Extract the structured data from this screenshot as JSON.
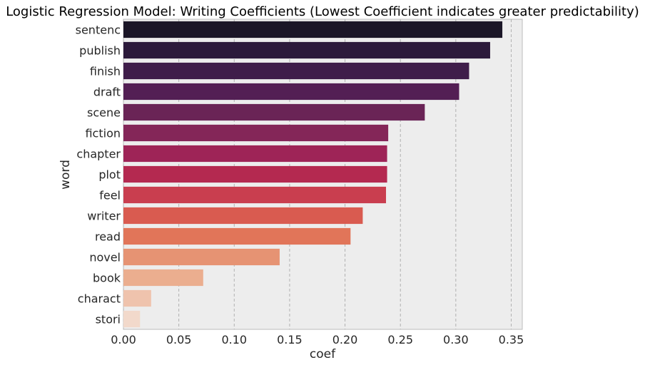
{
  "chart_data": {
    "type": "bar",
    "orientation": "horizontal",
    "title": "Logistic Regression Model: Writing Coefficients (Lowest Coefficient indicates greater predictability)",
    "xlabel": "coef",
    "ylabel": "word",
    "xlim": [
      0.0,
      0.36
    ],
    "xticks": [
      "0.00",
      "0.05",
      "0.10",
      "0.15",
      "0.20",
      "0.25",
      "0.30",
      "0.35"
    ],
    "categories": [
      "sentenc",
      "publish",
      "finish",
      "draft",
      "scene",
      "fiction",
      "chapter",
      "plot",
      "feel",
      "writer",
      "read",
      "novel",
      "book",
      "charact",
      "stori"
    ],
    "values": [
      0.342,
      0.331,
      0.312,
      0.303,
      0.272,
      0.239,
      0.238,
      0.238,
      0.237,
      0.216,
      0.205,
      0.141,
      0.072,
      0.025,
      0.015
    ],
    "colors": [
      "#1b1627",
      "#2c1a3b",
      "#3f1d4a",
      "#531f54",
      "#6a2456",
      "#842658",
      "#9e2457",
      "#b42950",
      "#c93e4f",
      "#d95b50",
      "#e17559",
      "#e69373",
      "#ebae8f",
      "#efc3ad",
      "#f2d9cb"
    ],
    "grid": true,
    "background": "#ededed"
  }
}
